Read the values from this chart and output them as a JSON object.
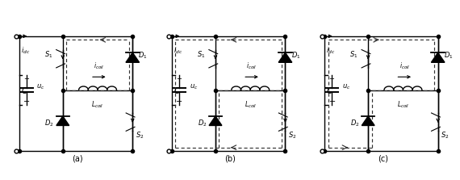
{
  "fig_width": 5.7,
  "fig_height": 2.23,
  "dpi": 100,
  "bg_color": "#ffffff",
  "solid_color": "#000000",
  "dash_color": "#333333",
  "panels": [
    "a",
    "b",
    "c"
  ],
  "panel_labels": [
    "(a)",
    "(b)",
    "(c)"
  ],
  "lw": 1.0,
  "dlw": 0.85,
  "dot_size": 3.0,
  "fs_label": 7,
  "fs_sym": 6.0,
  "fs_sub": 5.5,
  "xL": 0.1,
  "xM": 0.4,
  "xR": 0.88,
  "yT": 0.87,
  "yB": 0.08,
  "yMid": 0.5
}
